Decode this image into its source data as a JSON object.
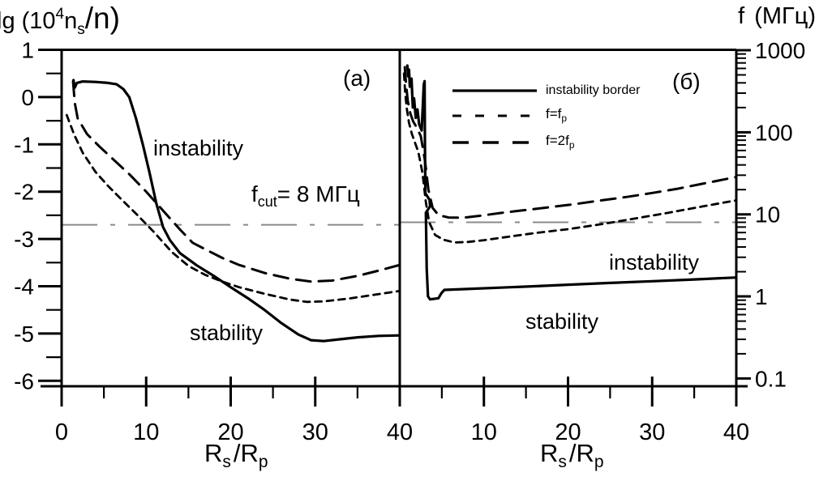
{
  "figure": {
    "y_left_title": {
      "pre": "lg (10",
      "sup": "4",
      "mid": "n",
      "sub": "s",
      "post": "/n)"
    },
    "y_right_title": {
      "pre": "f",
      "post": "(МГц)"
    },
    "x_title": {
      "pre": "R",
      "sub1": "s",
      "mid": "/R",
      "sub2": "p"
    },
    "panel_a_label": "(a)",
    "panel_b_label": "(б)",
    "cutoff_label": {
      "pre": "f",
      "sub": "cut",
      "post": "= 8 МГц"
    },
    "annotations": {
      "a_instability": "instability",
      "a_stability": "stability",
      "b_instability": "instability",
      "b_stability": "stability"
    },
    "legend": [
      {
        "style": "solid",
        "label": "instability border"
      },
      {
        "style": "short-dash",
        "pre": "f=f",
        "sub": "p"
      },
      {
        "style": "long-dash",
        "pre": "f=2f",
        "sub": "p"
      }
    ],
    "colors": {
      "curve": "#000000",
      "cutoff": "#8a8a8a",
      "background": "#ffffff"
    }
  },
  "chart_data": [
    {
      "type": "line",
      "panel": "a",
      "xlabel": "R_s/R_p",
      "ylabel": "lg(10^4 n_s/n)",
      "xlim": [
        0,
        40
      ],
      "ylim": [
        -6,
        1
      ],
      "yscale": "linear",
      "x_ticks": [
        0,
        10,
        20,
        30,
        40
      ],
      "x_tick_labels": [
        "0",
        "10",
        "20",
        "30",
        "40"
      ],
      "x_minor": [
        5,
        15,
        25,
        35
      ],
      "y_ticks": [
        1,
        0,
        -1,
        -2,
        -3,
        -4,
        -5,
        -6
      ],
      "cutoff_y": -2.7,
      "series": [
        {
          "name": "instability border",
          "style": "solid",
          "points": [
            [
              1.4,
              0.36
            ],
            [
              1.55,
              0.2
            ],
            [
              1.8,
              0.3
            ],
            [
              2.5,
              0.33
            ],
            [
              4,
              0.32
            ],
            [
              5.5,
              0.3
            ],
            [
              6.5,
              0.27
            ],
            [
              7.3,
              0.17
            ],
            [
              8,
              0.0
            ],
            [
              8.8,
              -0.45
            ],
            [
              9.6,
              -1.0
            ],
            [
              10.4,
              -1.6
            ],
            [
              11.2,
              -2.25
            ],
            [
              12,
              -2.75
            ],
            [
              12.8,
              -3.02
            ],
            [
              14,
              -3.3
            ],
            [
              16,
              -3.56
            ],
            [
              18,
              -3.78
            ],
            [
              20,
              -4.02
            ],
            [
              22,
              -4.25
            ],
            [
              24,
              -4.5
            ],
            [
              26,
              -4.78
            ],
            [
              28,
              -5.02
            ],
            [
              29.5,
              -5.14
            ],
            [
              31,
              -5.16
            ],
            [
              33,
              -5.12
            ],
            [
              35,
              -5.08
            ],
            [
              37.5,
              -5.05
            ],
            [
              40,
              -5.04
            ]
          ]
        },
        {
          "name": "f=f_p",
          "style": "short-dash",
          "points": [
            [
              0.6,
              -0.38
            ],
            [
              1.5,
              -0.8
            ],
            [
              2.5,
              -1.18
            ],
            [
              4,
              -1.58
            ],
            [
              5.5,
              -1.88
            ],
            [
              7,
              -2.15
            ],
            [
              9,
              -2.5
            ],
            [
              11,
              -2.87
            ],
            [
              13,
              -3.27
            ],
            [
              15,
              -3.57
            ],
            [
              17,
              -3.76
            ],
            [
              19,
              -3.9
            ],
            [
              21,
              -4.02
            ],
            [
              24,
              -4.16
            ],
            [
              27,
              -4.28
            ],
            [
              29,
              -4.33
            ],
            [
              31,
              -4.32
            ],
            [
              34,
              -4.26
            ],
            [
              37,
              -4.18
            ],
            [
              40,
              -4.1
            ]
          ]
        },
        {
          "name": "f=2f_p",
          "style": "long-dash",
          "points": [
            [
              1.35,
              0.33
            ],
            [
              1.55,
              -0.12
            ],
            [
              1.9,
              -0.45
            ],
            [
              3,
              -0.78
            ],
            [
              4.5,
              -1.05
            ],
            [
              6,
              -1.3
            ],
            [
              8,
              -1.63
            ],
            [
              10,
              -2.0
            ],
            [
              12,
              -2.4
            ],
            [
              14,
              -2.8
            ],
            [
              15.5,
              -3.08
            ],
            [
              17,
              -3.22
            ],
            [
              19,
              -3.4
            ],
            [
              21,
              -3.55
            ],
            [
              24,
              -3.72
            ],
            [
              27,
              -3.84
            ],
            [
              29.5,
              -3.9
            ],
            [
              32,
              -3.88
            ],
            [
              35,
              -3.78
            ],
            [
              37.5,
              -3.67
            ],
            [
              40,
              -3.55
            ]
          ]
        }
      ]
    },
    {
      "type": "line",
      "panel": "б",
      "xlabel": "R_s/R_p",
      "ylabel": "f (МГц)",
      "xlim": [
        0,
        40
      ],
      "ylim": [
        0.1,
        1000
      ],
      "yscale": "log",
      "x_ticks": [
        0,
        10,
        20,
        30,
        40
      ],
      "x_tick_labels": [
        "",
        "10",
        "20",
        "30",
        "40"
      ],
      "x_minor": [
        5,
        15,
        25,
        35
      ],
      "y_ticks": [
        1000,
        100,
        10,
        1,
        0.1
      ],
      "cutoff_y": 8,
      "series": [
        {
          "name": "instability border",
          "style": "solid",
          "points": [
            [
              0.9,
              650
            ],
            [
              1.0,
              480
            ],
            [
              1.1,
              580
            ],
            [
              1.2,
              360
            ],
            [
              1.4,
              450
            ],
            [
              1.55,
              200
            ],
            [
              1.7,
              260
            ],
            [
              1.9,
              150
            ],
            [
              2.1,
              190
            ],
            [
              2.3,
              125
            ],
            [
              2.6,
              105
            ],
            [
              2.85,
              380
            ],
            [
              2.95,
              420
            ],
            [
              3.0,
              60
            ],
            [
              3.05,
              18
            ],
            [
              3.55,
              15
            ],
            [
              3.6,
              12.5
            ],
            [
              3.1,
              10.5
            ],
            [
              3.2,
              2.2
            ],
            [
              3.35,
              1.0
            ],
            [
              3.6,
              0.92
            ],
            [
              4.6,
              0.95
            ],
            [
              4.95,
              1.1
            ],
            [
              5.3,
              1.2
            ],
            [
              8,
              1.23
            ],
            [
              12,
              1.28
            ],
            [
              16,
              1.33
            ],
            [
              20,
              1.39
            ],
            [
              25,
              1.46
            ],
            [
              30,
              1.53
            ],
            [
              35,
              1.61
            ],
            [
              40,
              1.7
            ]
          ]
        },
        {
          "name": "f=f_p",
          "style": "short-dash",
          "points": [
            [
              0.5,
              520
            ],
            [
              0.65,
              300
            ],
            [
              0.85,
              190
            ],
            [
              1.1,
              130
            ],
            [
              1.45,
              95
            ],
            [
              1.8,
              75
            ],
            [
              2.2,
              58
            ],
            [
              2.7,
              32
            ],
            [
              3.1,
              14
            ],
            [
              3.5,
              8
            ],
            [
              4.2,
              5.6
            ],
            [
              5.2,
              4.9
            ],
            [
              6.5,
              4.55
            ],
            [
              8,
              4.6
            ],
            [
              10,
              4.85
            ],
            [
              13,
              5.35
            ],
            [
              16,
              5.9
            ],
            [
              20,
              6.6
            ],
            [
              24,
              7.6
            ],
            [
              28,
              8.9
            ],
            [
              32,
              10.5
            ],
            [
              36,
              12.5
            ],
            [
              40,
              14.8
            ]
          ]
        },
        {
          "name": "f=2f_p",
          "style": "long-dash",
          "points": [
            [
              0.6,
              620
            ],
            [
              0.75,
              380
            ],
            [
              0.95,
              240
            ],
            [
              1.25,
              170
            ],
            [
              1.6,
              135
            ],
            [
              2.0,
              115
            ],
            [
              2.5,
              90
            ],
            [
              3.0,
              45
            ],
            [
              3.4,
              20
            ],
            [
              3.9,
              12
            ],
            [
              4.6,
              9.8
            ],
            [
              5.8,
              9.15
            ],
            [
              7.5,
              9.1
            ],
            [
              9.5,
              9.6
            ],
            [
              12,
              10.4
            ],
            [
              15,
              11.3
            ],
            [
              18,
              12.3
            ],
            [
              21,
              13.4
            ],
            [
              24,
              14.8
            ],
            [
              27,
              16.3
            ],
            [
              30,
              18.2
            ],
            [
              33,
              20.5
            ],
            [
              36,
              23.6
            ],
            [
              40,
              28.5
            ]
          ]
        }
      ]
    }
  ]
}
